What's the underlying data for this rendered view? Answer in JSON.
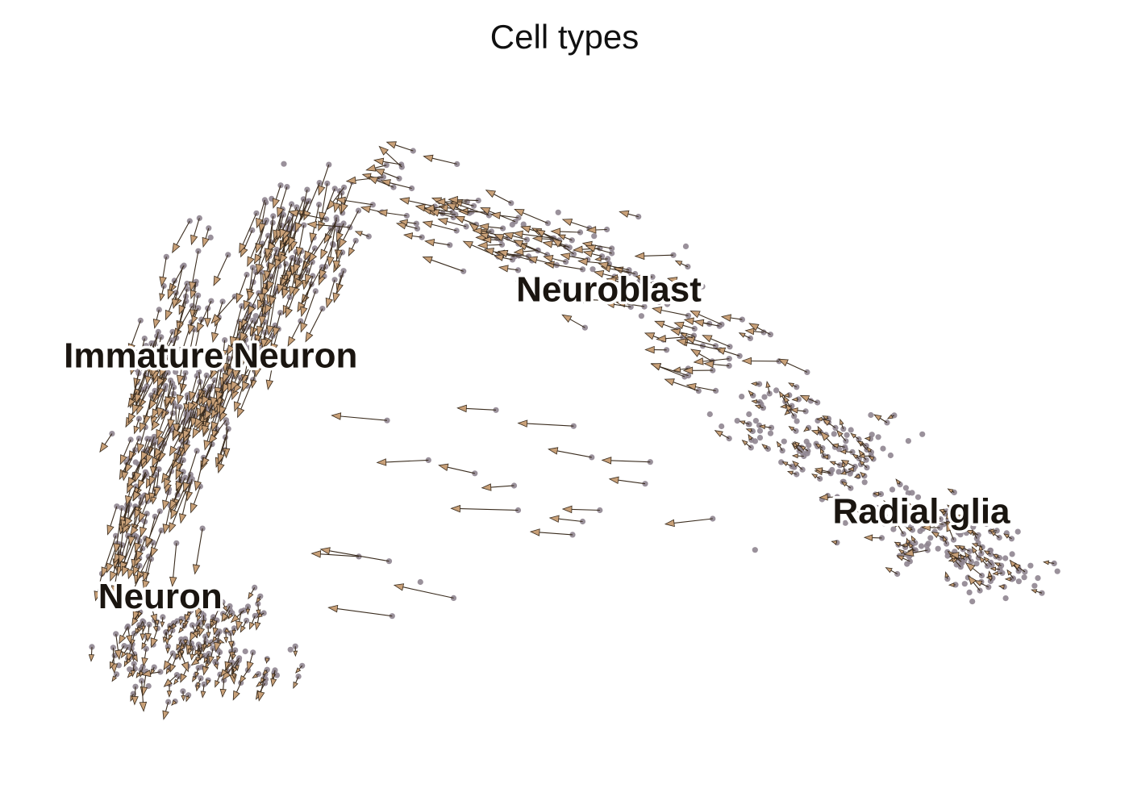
{
  "chart_data": {
    "type": "scatter",
    "title": "Cell types",
    "xlabel": "",
    "ylabel": "",
    "axes_visible": false,
    "grid": false,
    "xlim": [
      0,
      100
    ],
    "ylim": [
      0,
      70
    ],
    "point_color": "#8f8590",
    "arrow_color": "#3a2c1e",
    "arrowhead_fill": "#c8a078",
    "clusters": [
      {
        "name": "Immature Neuron",
        "label_position": [
          14.5,
          41.5
        ],
        "spread": [
          3.2,
          9.0
        ],
        "count": 420,
        "points": [
          [
            6.5,
            22.6
          ],
          [
            7.6,
            26.2
          ],
          [
            7.9,
            31.6
          ],
          [
            8.4,
            40.8
          ],
          [
            10.0,
            41.7
          ],
          [
            11.5,
            30.7
          ],
          [
            12.1,
            35.8
          ],
          [
            13.0,
            49.3
          ],
          [
            14.8,
            36.9
          ],
          [
            16.0,
            39.4
          ],
          [
            17.8,
            43.0
          ],
          [
            19.7,
            46.0
          ],
          [
            21.0,
            52.4
          ],
          [
            22.3,
            56.2
          ],
          [
            24.4,
            51.9
          ],
          [
            27.0,
            56.1
          ]
        ],
        "velocity": [
          -0.9,
          -3.0
        ]
      },
      {
        "name": "Neuron",
        "label_position": [
          9.5,
          16.0
        ],
        "spread": [
          4.2,
          3.0
        ],
        "count": 170,
        "points": [
          [
            6.3,
            10.9
          ],
          [
            7.6,
            8.5
          ],
          [
            8.4,
            13.3
          ],
          [
            10.1,
            12.5
          ],
          [
            11.4,
            7.8
          ],
          [
            12.6,
            11.3
          ],
          [
            13.8,
            14.3
          ],
          [
            14.2,
            9.8
          ],
          [
            16.0,
            12.7
          ],
          [
            17.3,
            9.5
          ],
          [
            18.2,
            15.2
          ],
          [
            20.8,
            8.2
          ]
        ],
        "velocity": [
          -0.3,
          -1.2
        ]
      },
      {
        "name": "Neuroblast",
        "label_position": [
          54.0,
          48.5
        ],
        "spread": [
          11.0,
          4.0
        ],
        "count": 150,
        "points": [
          [
            33.2,
            60.5
          ],
          [
            35.0,
            55.2
          ],
          [
            37.5,
            56.8
          ],
          [
            40.6,
            57.6
          ],
          [
            43.4,
            53.5
          ],
          [
            45.0,
            50.8
          ],
          [
            47.2,
            54.8
          ],
          [
            50.1,
            53.2
          ],
          [
            52.4,
            50.9
          ],
          [
            54.3,
            53.1
          ],
          [
            57.0,
            49.6
          ],
          [
            59.8,
            47.2
          ],
          [
            62.5,
            44.6
          ],
          [
            64.3,
            40.2
          ],
          [
            66.0,
            42.7
          ]
        ],
        "velocity": [
          -2.4,
          0.6
        ]
      },
      {
        "name": "Radial glia",
        "label_position": [
          85.0,
          25.0
        ],
        "spread": [
          6.5,
          3.6
        ],
        "count": 270,
        "points": [
          [
            69.0,
            33.8
          ],
          [
            71.5,
            36.9
          ],
          [
            73.2,
            31.5
          ],
          [
            75.8,
            34.7
          ],
          [
            77.4,
            29.5
          ],
          [
            79.6,
            31.8
          ],
          [
            81.0,
            27.1
          ],
          [
            83.4,
            24.0
          ],
          [
            85.0,
            21.6
          ],
          [
            87.2,
            23.9
          ],
          [
            88.9,
            19.4
          ],
          [
            90.5,
            22.4
          ],
          [
            92.4,
            20.5
          ],
          [
            94.0,
            18.1
          ]
        ],
        "velocity": [
          -0.9,
          0.55
        ]
      },
      {
        "name": "",
        "label_position": null,
        "spread": [
          9.0,
          8.0
        ],
        "count": 20,
        "points": [
          [
            50.5,
            34.3
          ],
          [
            52.3,
            31.0
          ],
          [
            58.1,
            30.5
          ],
          [
            57.6,
            28.2
          ],
          [
            53.1,
            25.4
          ],
          [
            44.6,
            28.0
          ],
          [
            45.0,
            25.4
          ],
          [
            51.4,
            24.2
          ],
          [
            64.3,
            24.5
          ],
          [
            50.4,
            22.8
          ],
          [
            40.7,
            29.3
          ],
          [
            42.8,
            36.0
          ],
          [
            36.1,
            30.7
          ],
          [
            32.0,
            34.9
          ],
          [
            32.2,
            20.0
          ],
          [
            38.6,
            16.1
          ],
          [
            35.3,
            17.8
          ],
          [
            29.2,
            20.5
          ],
          [
            32.5,
            14.2
          ],
          [
            68.5,
            21.2
          ]
        ],
        "velocity": [
          -4.8,
          0.2
        ]
      }
    ]
  }
}
